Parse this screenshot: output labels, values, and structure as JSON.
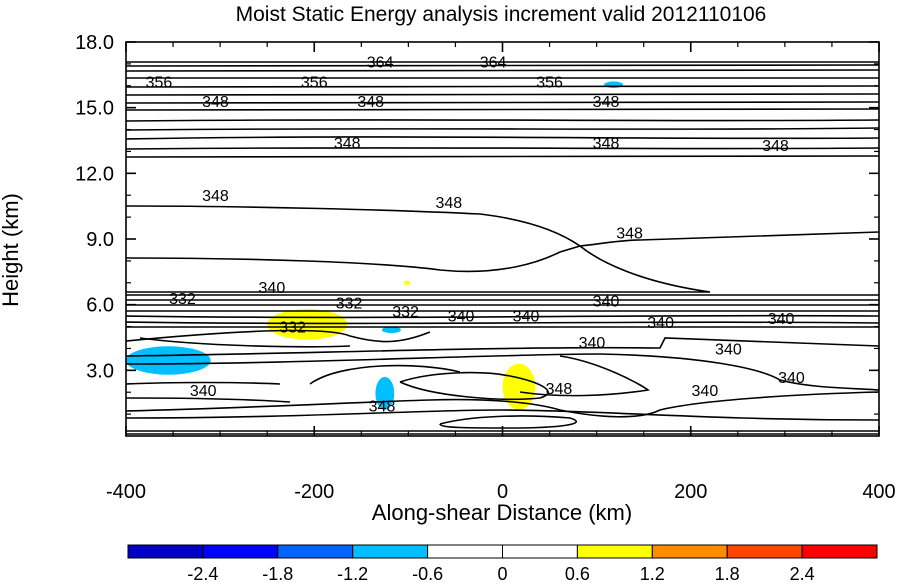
{
  "chart_data": {
    "type": "contour",
    "title": "Moist Static Energy analysis increment valid 2012110106",
    "xlabel": "Along-shear Distance (km)",
    "ylabel": "Height (km)",
    "xlim": [
      -400,
      400
    ],
    "ylim": [
      0,
      18
    ],
    "x_ticks": [
      "-400",
      "-200",
      "0",
      "200",
      "400"
    ],
    "y_ticks": [
      "3.0",
      "6.0",
      "9.0",
      "12.0",
      "15.0",
      "18.0"
    ],
    "contour_levels_labeled": [
      "332",
      "340",
      "348",
      "356",
      "364"
    ],
    "contour_labels": [
      {
        "text": "364",
        "x": -130,
        "y": 17.1
      },
      {
        "text": "364",
        "x": -10,
        "y": 17.1
      },
      {
        "text": "356",
        "x": -365,
        "y": 16.2
      },
      {
        "text": "356",
        "x": -200,
        "y": 16.2
      },
      {
        "text": "356",
        "x": 50,
        "y": 16.2
      },
      {
        "text": "348",
        "x": -305,
        "y": 15.3
      },
      {
        "text": "348",
        "x": -140,
        "y": 15.3
      },
      {
        "text": "348",
        "x": 110,
        "y": 15.3
      },
      {
        "text": "348",
        "x": -165,
        "y": 13.4
      },
      {
        "text": "348",
        "x": 110,
        "y": 13.4
      },
      {
        "text": "348",
        "x": 290,
        "y": 13.3
      },
      {
        "text": "348",
        "x": -305,
        "y": 11.0
      },
      {
        "text": "348",
        "x": -57,
        "y": 10.7
      },
      {
        "text": "348",
        "x": 135,
        "y": 9.3
      },
      {
        "text": "340",
        "x": -245,
        "y": 6.8
      },
      {
        "text": "332",
        "x": -340,
        "y": 6.3
      },
      {
        "text": "332",
        "x": -163,
        "y": 6.1
      },
      {
        "text": "332",
        "x": -103,
        "y": 5.7
      },
      {
        "text": "340",
        "x": -44,
        "y": 5.5
      },
      {
        "text": "340",
        "x": 25,
        "y": 5.5
      },
      {
        "text": "340",
        "x": 110,
        "y": 6.2
      },
      {
        "text": "332",
        "x": -223,
        "y": 5.0
      },
      {
        "text": "340",
        "x": 168,
        "y": 5.2
      },
      {
        "text": "340",
        "x": 296,
        "y": 5.4
      },
      {
        "text": "340",
        "x": 95,
        "y": 4.3
      },
      {
        "text": "340",
        "x": 240,
        "y": 4.0
      },
      {
        "text": "340",
        "x": 307,
        "y": 2.7
      },
      {
        "text": "340",
        "x": -318,
        "y": 2.1
      },
      {
        "text": "340",
        "x": 215,
        "y": 2.1
      },
      {
        "text": "348",
        "x": -128,
        "y": 1.4
      },
      {
        "text": "348",
        "x": 60,
        "y": 2.2
      }
    ],
    "shaded_increment_regions": [
      {
        "sign": "negative",
        "color": "#00bfff",
        "x_range": [
          -400,
          -310
        ],
        "y_range": [
          2.8,
          4.1
        ]
      },
      {
        "sign": "negative",
        "color": "#00bfff",
        "x_range": [
          -135,
          -115
        ],
        "y_range": [
          1.2,
          2.7
        ]
      },
      {
        "sign": "negative",
        "color": "#00bfff",
        "x_range": [
          -128,
          -108
        ],
        "y_range": [
          4.7,
          5.0
        ]
      },
      {
        "sign": "negative",
        "color": "#00bfff",
        "x_range": [
          108,
          128
        ],
        "y_range": [
          15.9,
          16.2
        ]
      },
      {
        "sign": "positive",
        "color": "#ffff00",
        "x_range": [
          -250,
          -165
        ],
        "y_range": [
          4.4,
          5.8
        ]
      },
      {
        "sign": "positive",
        "color": "#ffff00",
        "x_range": [
          0,
          35
        ],
        "y_range": [
          1.2,
          3.3
        ]
      },
      {
        "sign": "positive",
        "color": "#ffff00",
        "x_range": [
          -105,
          -98
        ],
        "y_range": [
          6.9,
          7.1
        ]
      }
    ],
    "colorbar": {
      "tick_labels": [
        "-2.4",
        "-1.8",
        "-1.2",
        "-0.6",
        "0",
        "0.6",
        "1.2",
        "1.8",
        "2.4"
      ],
      "colors": [
        "#0000c8",
        "#0000ff",
        "#0064ff",
        "#00bfff",
        "#ffffff",
        "#ffffff",
        "#ffff00",
        "#ff8c00",
        "#ff4500",
        "#ff0000"
      ]
    },
    "grid": false,
    "legend": "colorbar-bottom"
  }
}
